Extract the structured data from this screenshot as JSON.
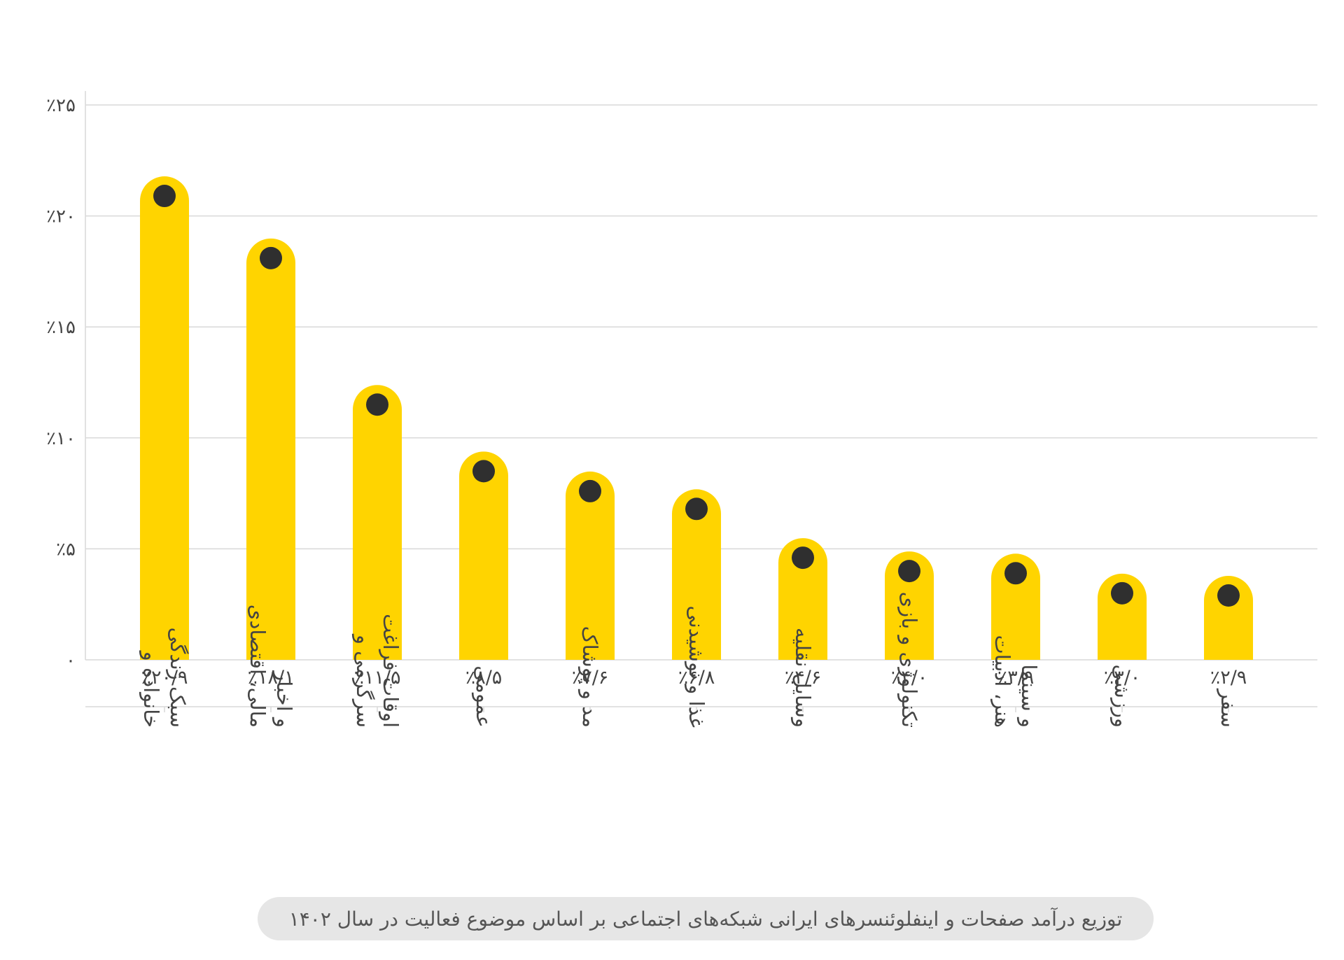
{
  "chart_data": {
    "type": "bar",
    "categories": [
      "خانواده و سبک زندگی",
      "مالی، اقتصادی و اخبار",
      "سرگرمی و اوقات فراغت",
      "عمومی",
      "مد و پوشاک",
      "غذا و نوشیدنی",
      "وسایل نقلیه",
      "تکنولوژی و بازی",
      "هنر، ادبیات و سینما",
      "ورزشی",
      "سفر"
    ],
    "category_lines": [
      [
        "خانواده و",
        "سبک زندگی"
      ],
      [
        "مالی، اقتصادی",
        "و اخبار"
      ],
      [
        "سرگرمی و",
        "اوقات فراغت"
      ],
      [
        "عمومی"
      ],
      [
        "مد و پوشاک"
      ],
      [
        "غذا و نوشیدنی"
      ],
      [
        "وسایل نقلیه"
      ],
      [
        "تکنولوژی و بازی"
      ],
      [
        "هنر، ادبیات",
        "و سینما"
      ],
      [
        "ورزشی"
      ],
      [
        "سفر"
      ]
    ],
    "values": [
      20.9,
      18.1,
      11.5,
      8.5,
      7.6,
      6.8,
      4.6,
      4.0,
      3.9,
      3.0,
      2.9
    ],
    "value_labels": [
      "٪۲۰/۹",
      "٪۱۸/۱",
      "٪۱۱/۵",
      "٪۸/۵",
      "٪۷/۶",
      "٪۶/۸",
      "٪۴/۶",
      "٪۴/۰",
      "٪۳/۹",
      "٪۳/۰",
      "٪۲/۹"
    ],
    "y_ticks": [
      0,
      5,
      10,
      15,
      20,
      25
    ],
    "y_tick_labels": [
      "۰",
      "٪۵",
      "٪۱۰",
      "٪۱۵",
      "٪۲۰",
      "٪۲۵"
    ],
    "ylim": [
      0,
      25
    ],
    "grid": true,
    "title": "توزیع درآمد صفحات و اینفلوئنسرهای ایرانی شبکه‌های اجتماعی بر اساس موضوع فعالیت در سال ۱۴۰۲"
  },
  "colors": {
    "bar": "#FFD400",
    "marker": "#2f2f2f",
    "grid": "#d9d9d9",
    "text": "#444444",
    "caption_bg": "#e6e6e6"
  }
}
